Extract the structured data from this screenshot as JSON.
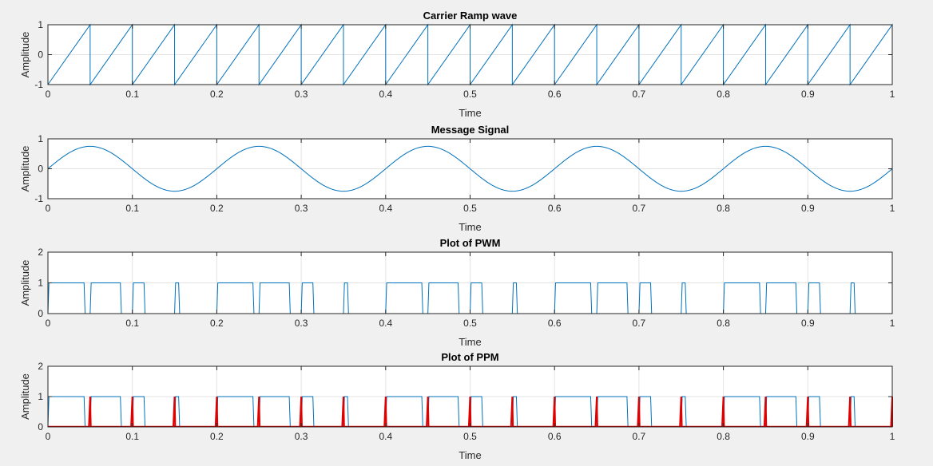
{
  "chart_data": [
    {
      "type": "line",
      "title": "Carrier Ramp wave",
      "xlabel": "Time",
      "ylabel": "Amplitude",
      "xlim": [
        0,
        1
      ],
      "ylim": [
        -1,
        1
      ],
      "xticks": [
        "0",
        "0.1",
        "0.2",
        "0.3",
        "0.4",
        "0.5",
        "0.6",
        "0.7",
        "0.8",
        "0.9",
        "1"
      ],
      "yticks": [
        "-1",
        "0",
        "1"
      ],
      "grid": true,
      "color": "#0072bd",
      "series": [
        {
          "x": [
            0,
            0.05,
            0.05,
            0.1,
            0.1,
            0.15,
            0.15,
            0.2,
            0.2,
            0.25,
            0.25,
            0.3,
            0.3,
            0.35,
            0.35,
            0.4,
            0.4,
            0.45,
            0.45,
            0.5,
            0.5,
            0.55,
            0.55,
            0.6,
            0.6,
            0.65,
            0.65,
            0.7,
            0.7,
            0.75,
            0.75,
            0.8,
            0.8,
            0.85,
            0.85,
            0.9,
            0.9,
            0.95,
            0.95,
            1.0,
            1.0
          ],
          "y": [
            -1,
            1,
            -1,
            1,
            -1,
            1,
            -1,
            1,
            -1,
            1,
            -1,
            1,
            -1,
            1,
            -1,
            1,
            -1,
            1,
            -1,
            1,
            -1,
            1,
            -1,
            1,
            -1,
            1,
            -1,
            1,
            -1,
            1,
            -1,
            1,
            -1,
            1,
            -1,
            1,
            -1,
            1,
            -1,
            1,
            -1
          ]
        }
      ]
    },
    {
      "type": "line",
      "title": "Message Signal",
      "xlabel": "Time",
      "ylabel": "Amplitude",
      "xlim": [
        0,
        1
      ],
      "ylim": [
        -1,
        1
      ],
      "xticks": [
        "0",
        "0.1",
        "0.2",
        "0.3",
        "0.4",
        "0.5",
        "0.6",
        "0.7",
        "0.8",
        "0.9",
        "1"
      ],
      "yticks": [
        "-1",
        "0",
        "1"
      ],
      "grid": true,
      "color": "#0072bd",
      "series": [
        {
          "function": "0.75*sin(2*pi*5*t)",
          "amplitude": 0.75,
          "frequency": 5
        }
      ]
    },
    {
      "type": "line",
      "title": "Plot of PWM",
      "xlabel": "Time",
      "ylabel": "Amplitude",
      "xlim": [
        0,
        1
      ],
      "ylim": [
        0,
        2
      ],
      "xticks": [
        "0",
        "0.1",
        "0.2",
        "0.3",
        "0.4",
        "0.5",
        "0.6",
        "0.7",
        "0.8",
        "0.9",
        "1"
      ],
      "yticks": [
        "0",
        "1",
        "2"
      ],
      "grid": true,
      "color": "#0072bd",
      "series": [
        {
          "pulses": [
            [
              0.0,
              0.044
            ],
            [
              0.05,
              0.087
            ],
            [
              0.1,
              0.115
            ],
            [
              0.15,
              0.156
            ],
            [
              0.2,
              0.244
            ],
            [
              0.25,
              0.287
            ],
            [
              0.3,
              0.315
            ],
            [
              0.35,
              0.356
            ],
            [
              0.4,
              0.444
            ],
            [
              0.45,
              0.487
            ],
            [
              0.5,
              0.515
            ],
            [
              0.55,
              0.556
            ],
            [
              0.6,
              0.644
            ],
            [
              0.65,
              0.687
            ],
            [
              0.7,
              0.715
            ],
            [
              0.75,
              0.756
            ],
            [
              0.8,
              0.844
            ],
            [
              0.85,
              0.887
            ],
            [
              0.9,
              0.915
            ],
            [
              0.95,
              0.956
            ]
          ]
        }
      ]
    },
    {
      "type": "line",
      "title": "Plot of PPM",
      "xlabel": "Time",
      "ylabel": "Amplitude",
      "xlim": [
        0,
        1
      ],
      "ylim": [
        0,
        2
      ],
      "xticks": [
        "0",
        "0.1",
        "0.2",
        "0.3",
        "0.4",
        "0.5",
        "0.6",
        "0.7",
        "0.8",
        "0.9",
        "1"
      ],
      "yticks": [
        "0",
        "1",
        "2"
      ],
      "grid": true,
      "color": "#0072bd",
      "ppm_color": "#e00000",
      "series": [
        {
          "pulses": [
            [
              0.0,
              0.044
            ],
            [
              0.05,
              0.087
            ],
            [
              0.1,
              0.115
            ],
            [
              0.15,
              0.156
            ],
            [
              0.2,
              0.244
            ],
            [
              0.25,
              0.287
            ],
            [
              0.3,
              0.315
            ],
            [
              0.35,
              0.356
            ],
            [
              0.4,
              0.444
            ],
            [
              0.45,
              0.487
            ],
            [
              0.5,
              0.515
            ],
            [
              0.55,
              0.556
            ],
            [
              0.6,
              0.644
            ],
            [
              0.65,
              0.687
            ],
            [
              0.7,
              0.715
            ],
            [
              0.75,
              0.756
            ],
            [
              0.8,
              0.844
            ],
            [
              0.85,
              0.887
            ],
            [
              0.9,
              0.915
            ],
            [
              0.95,
              0.956
            ]
          ]
        },
        {
          "spikes": [
            0.05,
            0.1,
            0.15,
            0.2,
            0.25,
            0.3,
            0.35,
            0.4,
            0.45,
            0.5,
            0.55,
            0.6,
            0.65,
            0.7,
            0.75,
            0.8,
            0.85,
            0.9,
            0.95,
            1.0
          ]
        }
      ]
    }
  ]
}
